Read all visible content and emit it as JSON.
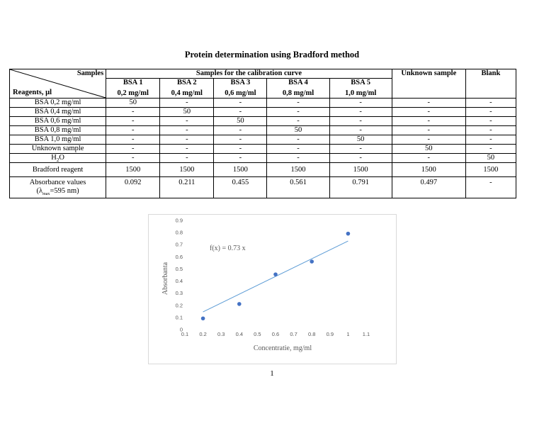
{
  "title": "Protein determination using Bradford method",
  "table": {
    "corner_top": "Samples",
    "corner_bottom": "Reagents, µl",
    "group_header": "Samples for the calibration curve",
    "unknown_header": "Unknown sample",
    "blank_header": "Blank",
    "columns": [
      {
        "name": "BSA 1",
        "conc": "0,2 mg/ml"
      },
      {
        "name": "BSA 2",
        "conc": "0,4 mg/ml"
      },
      {
        "name": "BSA 3",
        "conc": "0,6 mg/ml"
      },
      {
        "name": "BSA 4",
        "conc": "0,8 mg/ml"
      },
      {
        "name": "BSA 5",
        "conc": "1,0 mg/ml"
      }
    ],
    "rows": [
      {
        "label": "BSA 0,2 mg/ml",
        "cells": [
          "50",
          "-",
          "-",
          "-",
          "-",
          "-",
          "-"
        ]
      },
      {
        "label": "BSA 0,4 mg/ml",
        "cells": [
          "-",
          "50",
          "-",
          "-",
          "-",
          "-",
          "-"
        ]
      },
      {
        "label": "BSA 0,6 mg/ml",
        "cells": [
          "-",
          "-",
          "50",
          "-",
          "-",
          "-",
          "-"
        ]
      },
      {
        "label": "BSA 0,8 mg/ml",
        "cells": [
          "-",
          "-",
          "-",
          "50",
          "-",
          "-",
          "-"
        ]
      },
      {
        "label": "BSA 1,0 mg/ml",
        "cells": [
          "-",
          "-",
          "-",
          "-",
          "50",
          "-",
          "-"
        ]
      },
      {
        "label": "Unknown sample",
        "cells": [
          "-",
          "-",
          "-",
          "-",
          "-",
          "50",
          "-"
        ]
      },
      {
        "label_main": "H",
        "label_sub": "2",
        "label_tail": "O",
        "cells": [
          "-",
          "-",
          "-",
          "-",
          "-",
          "-",
          "50"
        ]
      },
      {
        "label": "Bradford reagent",
        "cells": [
          "1500",
          "1500",
          "1500",
          "1500",
          "1500",
          "1500",
          "1500"
        ]
      }
    ],
    "absorbance": {
      "label_line1": "Absorbance values",
      "label_line2_pre": "(λ",
      "label_line2_sub": "max",
      "label_line2_post": "=595 nm)",
      "cells": [
        "0.092",
        "0.211",
        "0.455",
        "0.561",
        "0.791",
        "0.497",
        "-"
      ]
    }
  },
  "chart_data": {
    "type": "scatter",
    "x": [
      0.2,
      0.4,
      0.6,
      0.8,
      1.0
    ],
    "y": [
      0.092,
      0.211,
      0.455,
      0.561,
      0.791
    ],
    "trendline": {
      "slope": 0.73,
      "intercept": 0,
      "x_range": [
        0.2,
        1.0
      ],
      "label": "f(x) = 0.73 x"
    },
    "xlabel": "Concentratie, mg/ml",
    "ylabel": "Absorbanta",
    "xlim": [
      0.1,
      1.1
    ],
    "ylim": [
      0,
      0.9
    ],
    "xticks": [
      "0.1",
      "0.2",
      "0.3",
      "0.4",
      "0.5",
      "0.6",
      "0.7",
      "0.8",
      "0.9",
      "1",
      "1.1"
    ],
    "yticks": [
      "0",
      "0.1",
      "0.2",
      "0.3",
      "0.4",
      "0.5",
      "0.6",
      "0.7",
      "0.8",
      "0.9"
    ],
    "grid": false,
    "colors": {
      "marker": "#4472C4",
      "trendline": "#5B9BD5",
      "text": "#595959"
    }
  },
  "page_number": "1"
}
